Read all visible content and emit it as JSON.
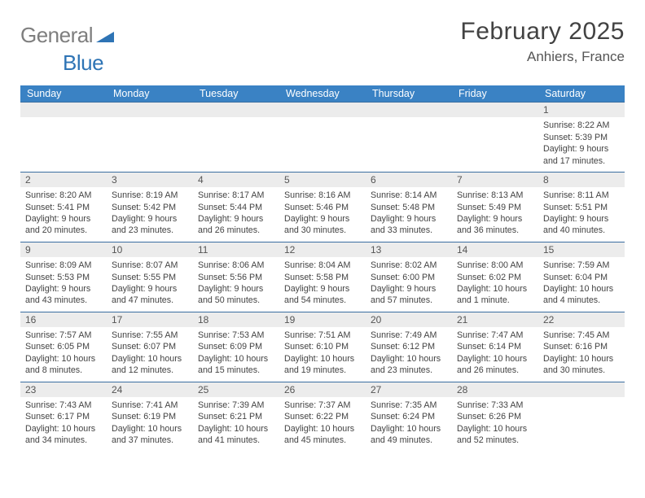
{
  "logo": {
    "part1": "General",
    "part2": "Blue"
  },
  "title": "February 2025",
  "location": "Anhiers, France",
  "colors": {
    "header_bg": "#3a82c4",
    "logo_gray": "#7e7e7e",
    "logo_blue": "#2e74b5",
    "week_border": "#3a6ea0",
    "daynum_bg": "#ececec",
    "text": "#434343"
  },
  "day_labels": [
    "Sunday",
    "Monday",
    "Tuesday",
    "Wednesday",
    "Thursday",
    "Friday",
    "Saturday"
  ],
  "first_weekday_index": 6,
  "days": [
    {
      "n": 1,
      "sunrise": "8:22 AM",
      "sunset": "5:39 PM",
      "daylight": "9 hours and 17 minutes."
    },
    {
      "n": 2,
      "sunrise": "8:20 AM",
      "sunset": "5:41 PM",
      "daylight": "9 hours and 20 minutes."
    },
    {
      "n": 3,
      "sunrise": "8:19 AM",
      "sunset": "5:42 PM",
      "daylight": "9 hours and 23 minutes."
    },
    {
      "n": 4,
      "sunrise": "8:17 AM",
      "sunset": "5:44 PM",
      "daylight": "9 hours and 26 minutes."
    },
    {
      "n": 5,
      "sunrise": "8:16 AM",
      "sunset": "5:46 PM",
      "daylight": "9 hours and 30 minutes."
    },
    {
      "n": 6,
      "sunrise": "8:14 AM",
      "sunset": "5:48 PM",
      "daylight": "9 hours and 33 minutes."
    },
    {
      "n": 7,
      "sunrise": "8:13 AM",
      "sunset": "5:49 PM",
      "daylight": "9 hours and 36 minutes."
    },
    {
      "n": 8,
      "sunrise": "8:11 AM",
      "sunset": "5:51 PM",
      "daylight": "9 hours and 40 minutes."
    },
    {
      "n": 9,
      "sunrise": "8:09 AM",
      "sunset": "5:53 PM",
      "daylight": "9 hours and 43 minutes."
    },
    {
      "n": 10,
      "sunrise": "8:07 AM",
      "sunset": "5:55 PM",
      "daylight": "9 hours and 47 minutes."
    },
    {
      "n": 11,
      "sunrise": "8:06 AM",
      "sunset": "5:56 PM",
      "daylight": "9 hours and 50 minutes."
    },
    {
      "n": 12,
      "sunrise": "8:04 AM",
      "sunset": "5:58 PM",
      "daylight": "9 hours and 54 minutes."
    },
    {
      "n": 13,
      "sunrise": "8:02 AM",
      "sunset": "6:00 PM",
      "daylight": "9 hours and 57 minutes."
    },
    {
      "n": 14,
      "sunrise": "8:00 AM",
      "sunset": "6:02 PM",
      "daylight": "10 hours and 1 minute."
    },
    {
      "n": 15,
      "sunrise": "7:59 AM",
      "sunset": "6:04 PM",
      "daylight": "10 hours and 4 minutes."
    },
    {
      "n": 16,
      "sunrise": "7:57 AM",
      "sunset": "6:05 PM",
      "daylight": "10 hours and 8 minutes."
    },
    {
      "n": 17,
      "sunrise": "7:55 AM",
      "sunset": "6:07 PM",
      "daylight": "10 hours and 12 minutes."
    },
    {
      "n": 18,
      "sunrise": "7:53 AM",
      "sunset": "6:09 PM",
      "daylight": "10 hours and 15 minutes."
    },
    {
      "n": 19,
      "sunrise": "7:51 AM",
      "sunset": "6:10 PM",
      "daylight": "10 hours and 19 minutes."
    },
    {
      "n": 20,
      "sunrise": "7:49 AM",
      "sunset": "6:12 PM",
      "daylight": "10 hours and 23 minutes."
    },
    {
      "n": 21,
      "sunrise": "7:47 AM",
      "sunset": "6:14 PM",
      "daylight": "10 hours and 26 minutes."
    },
    {
      "n": 22,
      "sunrise": "7:45 AM",
      "sunset": "6:16 PM",
      "daylight": "10 hours and 30 minutes."
    },
    {
      "n": 23,
      "sunrise": "7:43 AM",
      "sunset": "6:17 PM",
      "daylight": "10 hours and 34 minutes."
    },
    {
      "n": 24,
      "sunrise": "7:41 AM",
      "sunset": "6:19 PM",
      "daylight": "10 hours and 37 minutes."
    },
    {
      "n": 25,
      "sunrise": "7:39 AM",
      "sunset": "6:21 PM",
      "daylight": "10 hours and 41 minutes."
    },
    {
      "n": 26,
      "sunrise": "7:37 AM",
      "sunset": "6:22 PM",
      "daylight": "10 hours and 45 minutes."
    },
    {
      "n": 27,
      "sunrise": "7:35 AM",
      "sunset": "6:24 PM",
      "daylight": "10 hours and 49 minutes."
    },
    {
      "n": 28,
      "sunrise": "7:33 AM",
      "sunset": "6:26 PM",
      "daylight": "10 hours and 52 minutes."
    }
  ],
  "labels": {
    "sunrise_prefix": "Sunrise: ",
    "sunset_prefix": "Sunset: ",
    "daylight_prefix": "Daylight: "
  }
}
